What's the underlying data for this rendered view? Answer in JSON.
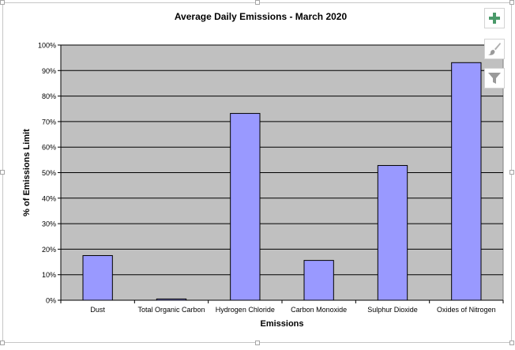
{
  "chart_data": {
    "type": "bar",
    "title": "Average Daily Emissions - March 2020",
    "xlabel": "Emissions",
    "ylabel": "% of Emissions Limit",
    "categories": [
      "Dust",
      "Total Organic Carbon",
      "Hydrogen Chloride",
      "Carbon Monoxide",
      "Sulphur Dioxide",
      "Oxides of Nitrogen"
    ],
    "values": [
      17.5,
      0.5,
      73.2,
      15.6,
      52.8,
      93.1
    ],
    "ylim": [
      0,
      100
    ],
    "yticks": [
      0,
      10,
      20,
      30,
      40,
      50,
      60,
      70,
      80,
      90,
      100
    ],
    "ytick_labels": [
      "0%",
      "10%",
      "20%",
      "30%",
      "40%",
      "50%",
      "60%",
      "70%",
      "80%",
      "90%",
      "100%"
    ],
    "grid": true,
    "legend": "none",
    "colors": {
      "bar_fill": "#9999ff",
      "bar_stroke": "#000000",
      "plot_background": "#c0c0c0",
      "gridline": "#000000"
    }
  },
  "toolbar": {
    "buttons": [
      {
        "icon": "plus-icon",
        "color": "#4a9a6a"
      },
      {
        "icon": "paintbrush-icon",
        "color": "#9a9a9a"
      },
      {
        "icon": "filter-icon",
        "color": "#9a9a9a"
      }
    ]
  }
}
